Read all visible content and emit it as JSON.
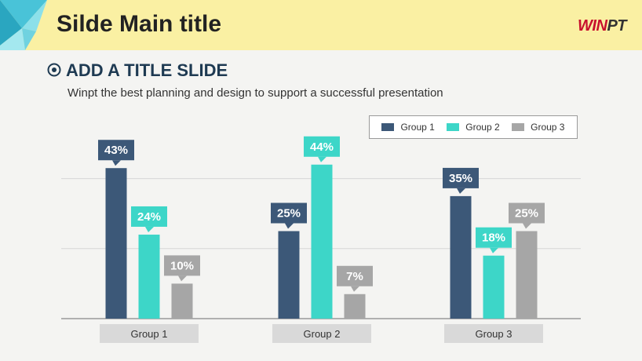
{
  "header": {
    "title": "Silde Main title",
    "logo_part1": "WIN",
    "logo_part2": "PT"
  },
  "section": {
    "title": "ADD A TITLE SLIDE",
    "subtitle": "Winpt the best planning and design to support a successful presentation",
    "icon": "circle-plus-icon"
  },
  "colors": {
    "header_bg": "#faf0a3",
    "group1": "#3c5878",
    "group2": "#3dd6c8",
    "group3": "#a6a6a6",
    "category_box": "#d9d9d9"
  },
  "chart_data": {
    "type": "bar",
    "categories": [
      "Group 1",
      "Group 2",
      "Group 3"
    ],
    "series": [
      {
        "name": "Group 1",
        "values": [
          43,
          25,
          35
        ],
        "color": "#3c5878"
      },
      {
        "name": "Group 2",
        "values": [
          24,
          44,
          18
        ],
        "color": "#3dd6c8"
      },
      {
        "name": "Group 3",
        "values": [
          10,
          7,
          25
        ],
        "color": "#a6a6a6"
      }
    ],
    "value_suffix": "%",
    "ylim": [
      0,
      50
    ],
    "grid": true,
    "legend_position": "top-right",
    "title": "",
    "xlabel": "",
    "ylabel": ""
  }
}
